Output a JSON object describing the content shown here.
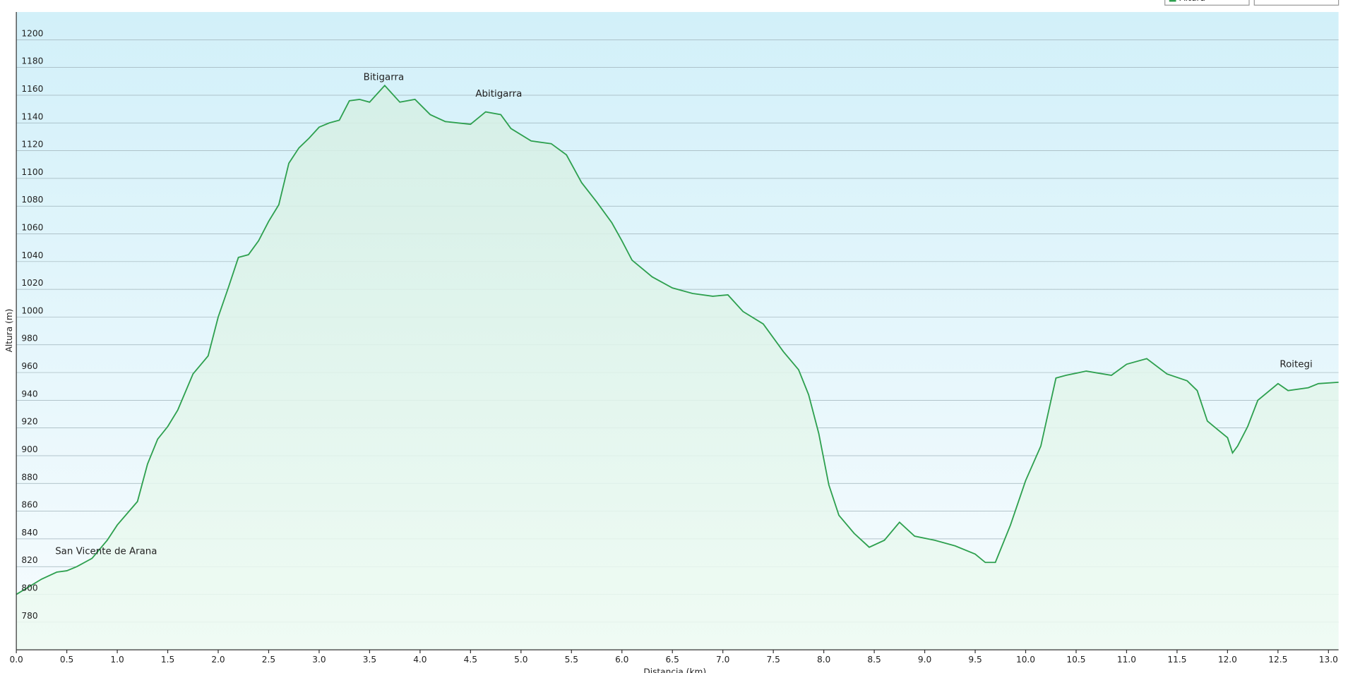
{
  "chart_data": {
    "type": "area",
    "x_label": "Distancia (km)",
    "y_label": "Altura (m)",
    "x": [
      0,
      0.25,
      0.4,
      0.5,
      0.6,
      0.75,
      0.9,
      1.0,
      1.2,
      1.3,
      1.4,
      1.5,
      1.6,
      1.75,
      1.9,
      2.0,
      2.1,
      2.2,
      2.3,
      2.4,
      2.5,
      2.6,
      2.7,
      2.8,
      2.9,
      3.0,
      3.1,
      3.2,
      3.3,
      3.4,
      3.5,
      3.65,
      3.8,
      3.95,
      4.1,
      4.25,
      4.5,
      4.65,
      4.8,
      4.9,
      5.1,
      5.3,
      5.45,
      5.6,
      5.75,
      5.9,
      6.0,
      6.1,
      6.3,
      6.5,
      6.7,
      6.9,
      7.05,
      7.2,
      7.4,
      7.6,
      7.75,
      7.85,
      7.95,
      8.05,
      8.15,
      8.3,
      8.45,
      8.6,
      8.75,
      8.9,
      9.1,
      9.3,
      9.5,
      9.6,
      9.7,
      9.85,
      10.0,
      10.15,
      10.3,
      10.4,
      10.6,
      10.85,
      11.0,
      11.2,
      11.4,
      11.6,
      11.7,
      11.8,
      11.9,
      12.0,
      12.05,
      12.1,
      12.2,
      12.3,
      12.5,
      12.6,
      12.8,
      12.9,
      13.1
    ],
    "series": [
      {
        "name": "Altura",
        "color": "#2ea04f",
        "values": [
          800,
          811,
          816,
          817,
          820,
          826,
          839,
          850,
          867,
          894,
          912,
          921,
          933,
          959,
          972,
          1000,
          1021,
          1043,
          1045,
          1055,
          1069,
          1081,
          1111,
          1122,
          1129,
          1137,
          1140,
          1142,
          1156,
          1157,
          1155,
          1167,
          1155,
          1157,
          1146,
          1141,
          1139,
          1148,
          1146,
          1136,
          1127,
          1125,
          1117,
          1097,
          1083,
          1068,
          1055,
          1041,
          1029,
          1021,
          1017,
          1015,
          1016,
          1004,
          995,
          975,
          962,
          944,
          916,
          879,
          857,
          844,
          834,
          839,
          852,
          842,
          839,
          835,
          829,
          823,
          823,
          850,
          882,
          907,
          956,
          958,
          961,
          958,
          966,
          970,
          959,
          954,
          947,
          925,
          919,
          913,
          902,
          907,
          921,
          940,
          952,
          947,
          949,
          952,
          953
        ]
      }
    ],
    "annotations": [
      {
        "text": "San Vicente de Arana",
        "x": 0.89,
        "y": 831
      },
      {
        "text": "Bitigarra",
        "x": 3.64,
        "y": 1173
      },
      {
        "text": "Abitigarra",
        "x": 4.78,
        "y": 1161
      },
      {
        "text": "Roitegi",
        "x": 12.68,
        "y": 966
      }
    ],
    "xlim": [
      0,
      13.1
    ],
    "ylim": [
      760,
      1220
    ],
    "xticks": [
      {
        "value": 0,
        "label": "0.0"
      },
      {
        "value": 0.5,
        "label": "0.5"
      },
      {
        "value": 1,
        "label": "1.0"
      },
      {
        "value": 1.5,
        "label": "1.5"
      },
      {
        "value": 2,
        "label": "2.0"
      },
      {
        "value": 2.5,
        "label": "2.5"
      },
      {
        "value": 3,
        "label": "3.0"
      },
      {
        "value": 3.5,
        "label": "3.5"
      },
      {
        "value": 4,
        "label": "4.0"
      },
      {
        "value": 4.5,
        "label": "4.5"
      },
      {
        "value": 5,
        "label": "5.0"
      },
      {
        "value": 5.5,
        "label": "5.5"
      },
      {
        "value": 6,
        "label": "6.0"
      },
      {
        "value": 6.5,
        "label": "6.5"
      },
      {
        "value": 7,
        "label": "7.0"
      },
      {
        "value": 7.5,
        "label": "7.5"
      },
      {
        "value": 8,
        "label": "8.0"
      },
      {
        "value": 8.5,
        "label": "8.5"
      },
      {
        "value": 9,
        "label": "9.0"
      },
      {
        "value": 9.5,
        "label": "9.5"
      },
      {
        "value": 10,
        "label": "10.0"
      },
      {
        "value": 10.5,
        "label": "10.5"
      },
      {
        "value": 11,
        "label": "11.0"
      },
      {
        "value": 11.5,
        "label": "11.5"
      },
      {
        "value": 12,
        "label": "12.0"
      },
      {
        "value": 12.5,
        "label": "12.5"
      },
      {
        "value": 13,
        "label": "13.0"
      }
    ],
    "yticks": [
      780,
      800,
      820,
      840,
      860,
      880,
      900,
      920,
      940,
      960,
      980,
      1000,
      1020,
      1040,
      1060,
      1080,
      1100,
      1120,
      1140,
      1160,
      1180,
      1200
    ],
    "grid": true
  }
}
